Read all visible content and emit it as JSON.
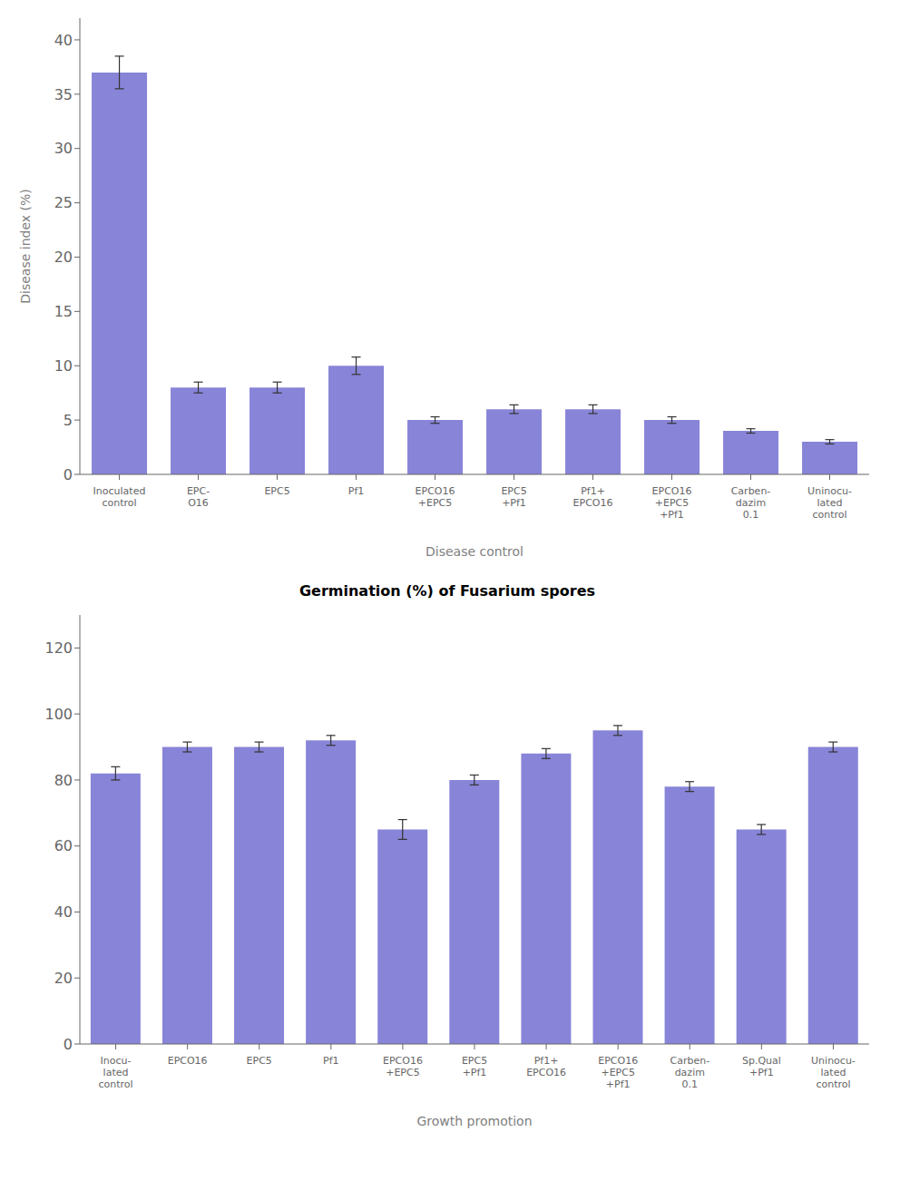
{
  "chart_data": [
    {
      "type": "bar",
      "xlabel": "Disease control",
      "ylabel": "Disease index (%)",
      "categories": [
        "Inoculated\ncontrol",
        "EPC-\nO16",
        "EPC5",
        "Pf1",
        "EPCO16\n+EPC5",
        "EPC5\n+Pf1",
        "Pf1+\nEPCO16",
        "EPCO16\n+EPC5\n+Pf1",
        "Carben-\ndazim\n0.1",
        "Uninocu-\nlated\ncontrol"
      ],
      "values": [
        37,
        8,
        8,
        10,
        5,
        6,
        6,
        5,
        4,
        3
      ],
      "errors": [
        1.5,
        0.5,
        0.5,
        0.8,
        0.3,
        0.4,
        0.4,
        0.3,
        0.2,
        0.2
      ],
      "color": "#8884d8",
      "ylim": [
        0,
        42
      ],
      "yticks": [
        0,
        5,
        10,
        15,
        20,
        25,
        30,
        35,
        40
      ],
      "grid": false
    },
    {
      "type": "bar",
      "title": "Germination (%) of Fusarium spores",
      "xlabel": "Growth promotion",
      "categories": [
        "Inocu-\nlated\ncontrol",
        "EPCO16",
        "EPC5",
        "Pf1",
        "EPCO16\n+EPC5",
        "EPC5\n+Pf1",
        "Pf1+\nEPCO16",
        "EPCO16\n+EPC5\n+Pf1",
        "Carben-\ndazim\n0.1",
        "Sp.Qual\n+Pf1",
        "Uninocu-\nlated\ncontrol"
      ],
      "values": [
        82,
        90,
        90,
        92,
        65,
        80,
        88,
        95,
        78,
        65,
        90
      ],
      "errors": [
        2.0,
        1.5,
        1.5,
        1.5,
        3.0,
        1.5,
        1.5,
        1.5,
        1.5,
        1.5,
        1.5
      ],
      "color": "#8884d8",
      "ylim": [
        0,
        130
      ],
      "yticks": [
        0,
        20,
        40,
        60,
        80,
        100,
        120
      ],
      "grid": false
    }
  ]
}
